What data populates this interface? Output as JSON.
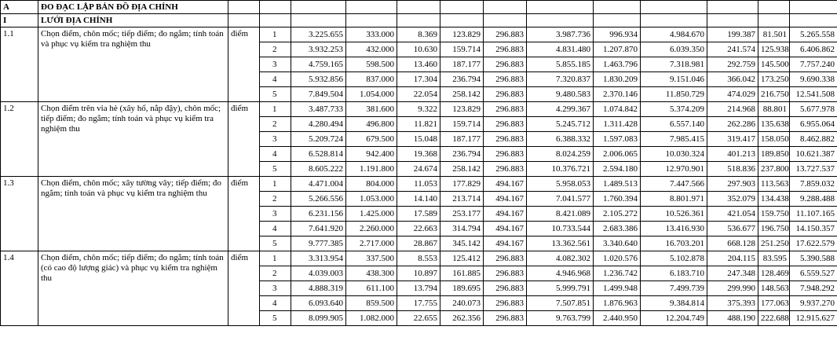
{
  "header": {
    "code": "A",
    "title": "ĐO ĐẠC LẬP BẢN ĐỒ ĐỊA CHÍNH"
  },
  "section": {
    "code": "I",
    "title": "LƯỚI ĐỊA CHÍNH"
  },
  "groups": [
    {
      "code": "1.1",
      "description": "Chọn điểm, chôn mốc; tiếp điểm; đo ngắm; tính toán và phục vụ kiểm tra nghiệm thu",
      "unit": "điểm",
      "rows": [
        [
          "1",
          "3.225.655",
          "333.000",
          "8.369",
          "123.829",
          "296.883",
          "3.987.736",
          "996.934",
          "4.984.670",
          "199.387",
          "81.501",
          "5.265.558"
        ],
        [
          "2",
          "3.932.253",
          "432.000",
          "10.630",
          "159.714",
          "296.883",
          "4.831.480",
          "1.207.870",
          "6.039.350",
          "241.574",
          "125.938",
          "6.406.862"
        ],
        [
          "3",
          "4.759.165",
          "598.500",
          "13.460",
          "187.177",
          "296.883",
          "5.855.185",
          "1.463.796",
          "7.318.981",
          "292.759",
          "145.500",
          "7.757.240"
        ],
        [
          "4",
          "5.932.856",
          "837.000",
          "17.304",
          "236.794",
          "296.883",
          "7.320.837",
          "1.830.209",
          "9.151.046",
          "366.042",
          "173.250",
          "9.690.338"
        ],
        [
          "5",
          "7.849.504",
          "1.054.000",
          "22.054",
          "258.142",
          "296.883",
          "9.480.583",
          "2.370.146",
          "11.850.729",
          "474.029",
          "216.750",
          "12.541.508"
        ]
      ]
    },
    {
      "code": "1.2",
      "description": "Chọn điểm trên vỉa hè (xây hố, nắp đậy), chôn mốc; tiếp điểm; đo ngắm; tính toán và phục vụ kiểm tra nghiệm thu",
      "unit": "điểm",
      "rows": [
        [
          "1",
          "3.487.733",
          "381.600",
          "9.322",
          "123.829",
          "296.883",
          "4.299.367",
          "1.074.842",
          "5.374.209",
          "214.968",
          "88.801",
          "5.677.978"
        ],
        [
          "2",
          "4.280.494",
          "496.800",
          "11.821",
          "159.714",
          "296.883",
          "5.245.712",
          "1.311.428",
          "6.557.140",
          "262.286",
          "135.638",
          "6.955.064"
        ],
        [
          "3",
          "5.209.724",
          "679.500",
          "15.048",
          "187.177",
          "296.883",
          "6.388.332",
          "1.597.083",
          "7.985.415",
          "319.417",
          "158.050",
          "8.462.882"
        ],
        [
          "4",
          "6.528.814",
          "942.400",
          "19.368",
          "236.794",
          "296.883",
          "8.024.259",
          "2.006.065",
          "10.030.324",
          "401.213",
          "189.850",
          "10.621.387"
        ],
        [
          "5",
          "8.605.222",
          "1.191.800",
          "24.674",
          "258.142",
          "296.883",
          "10.376.721",
          "2.594.180",
          "12.970.901",
          "518.836",
          "237.800",
          "13.727.537"
        ]
      ]
    },
    {
      "code": "1.3",
      "description": "Chọn điểm, chôn mốc; xây tường vây; tiếp điểm; đo ngắm; tính toán và phục vụ kiểm tra nghiệm thu",
      "unit": "điểm",
      "rows": [
        [
          "1",
          "4.471.004",
          "804.000",
          "11.053",
          "177.829",
          "494.167",
          "5.958.053",
          "1.489.513",
          "7.447.566",
          "297.903",
          "113.563",
          "7.859.032"
        ],
        [
          "2",
          "5.266.556",
          "1.053.000",
          "14.140",
          "213.714",
          "494.167",
          "7.041.577",
          "1.760.394",
          "8.801.971",
          "352.079",
          "134.438",
          "9.288.488"
        ],
        [
          "3",
          "6.231.156",
          "1.425.000",
          "17.589",
          "253.177",
          "494.167",
          "8.421.089",
          "2.105.272",
          "10.526.361",
          "421.054",
          "159.750",
          "11.107.165"
        ],
        [
          "4",
          "7.641.920",
          "2.260.000",
          "22.663",
          "314.794",
          "494.167",
          "10.733.544",
          "2.683.386",
          "13.416.930",
          "536.677",
          "196.750",
          "14.150.357"
        ],
        [
          "5",
          "9.777.385",
          "2.717.000",
          "28.867",
          "345.142",
          "494.167",
          "13.362.561",
          "3.340.640",
          "16.703.201",
          "668.128",
          "251.250",
          "17.622.579"
        ]
      ]
    },
    {
      "code": "1.4",
      "description": "Chọn điểm, chôn mốc; tiếp điểm; đo ngắm; tính toán (có cao độ lượng giác) và phục vụ kiểm tra nghiệm thu",
      "unit": "điểm",
      "rows": [
        [
          "1",
          "3.313.954",
          "337.500",
          "8.553",
          "125.412",
          "296.883",
          "4.082.302",
          "1.020.576",
          "5.102.878",
          "204.115",
          "83.595",
          "5.390.588"
        ],
        [
          "2",
          "4.039.003",
          "438.300",
          "10.897",
          "161.885",
          "296.883",
          "4.946.968",
          "1.236.742",
          "6.183.710",
          "247.348",
          "128.469",
          "6.559.527"
        ],
        [
          "3",
          "4.888.319",
          "611.100",
          "13.794",
          "189.695",
          "296.883",
          "5.999.791",
          "1.499.948",
          "7.499.739",
          "299.990",
          "148.563",
          "7.948.292"
        ],
        [
          "4",
          "6.093.640",
          "859.500",
          "17.755",
          "240.073",
          "296.883",
          "7.507.851",
          "1.876.963",
          "9.384.814",
          "375.393",
          "177.063",
          "9.937.270"
        ],
        [
          "5",
          "8.099.905",
          "1.082.000",
          "22.655",
          "262.356",
          "296.883",
          "9.763.799",
          "2.440.950",
          "12.204.749",
          "488.190",
          "222.688",
          "12.915.627"
        ]
      ]
    }
  ]
}
